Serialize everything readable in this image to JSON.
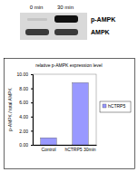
{
  "chart_data": {
    "type": "bar",
    "title": "relative p-AMPK expression level",
    "y_label": "p-AMPK / total AMPK",
    "annotations": [
      "0 min",
      "30 min",
      "p-AMPK",
      "AMPK"
    ],
    "categories": [
      "Control",
      "hCTRP5 30min"
    ],
    "series": [
      {
        "name": "hCTRP5",
        "color": "#9999ff",
        "values": [
          1.0,
          8.8
        ]
      }
    ],
    "ylim": [
      0,
      10
    ],
    "yticks": [
      {
        "value": 0,
        "label": "0.00"
      },
      {
        "value": 2,
        "label": "2.00"
      },
      {
        "value": 4,
        "label": "4.00"
      },
      {
        "value": 6,
        "label": "6.00"
      },
      {
        "value": 8,
        "label": "8.00"
      },
      {
        "value": 10,
        "label": "10.00"
      }
    ],
    "grid": false,
    "legend": "right"
  }
}
